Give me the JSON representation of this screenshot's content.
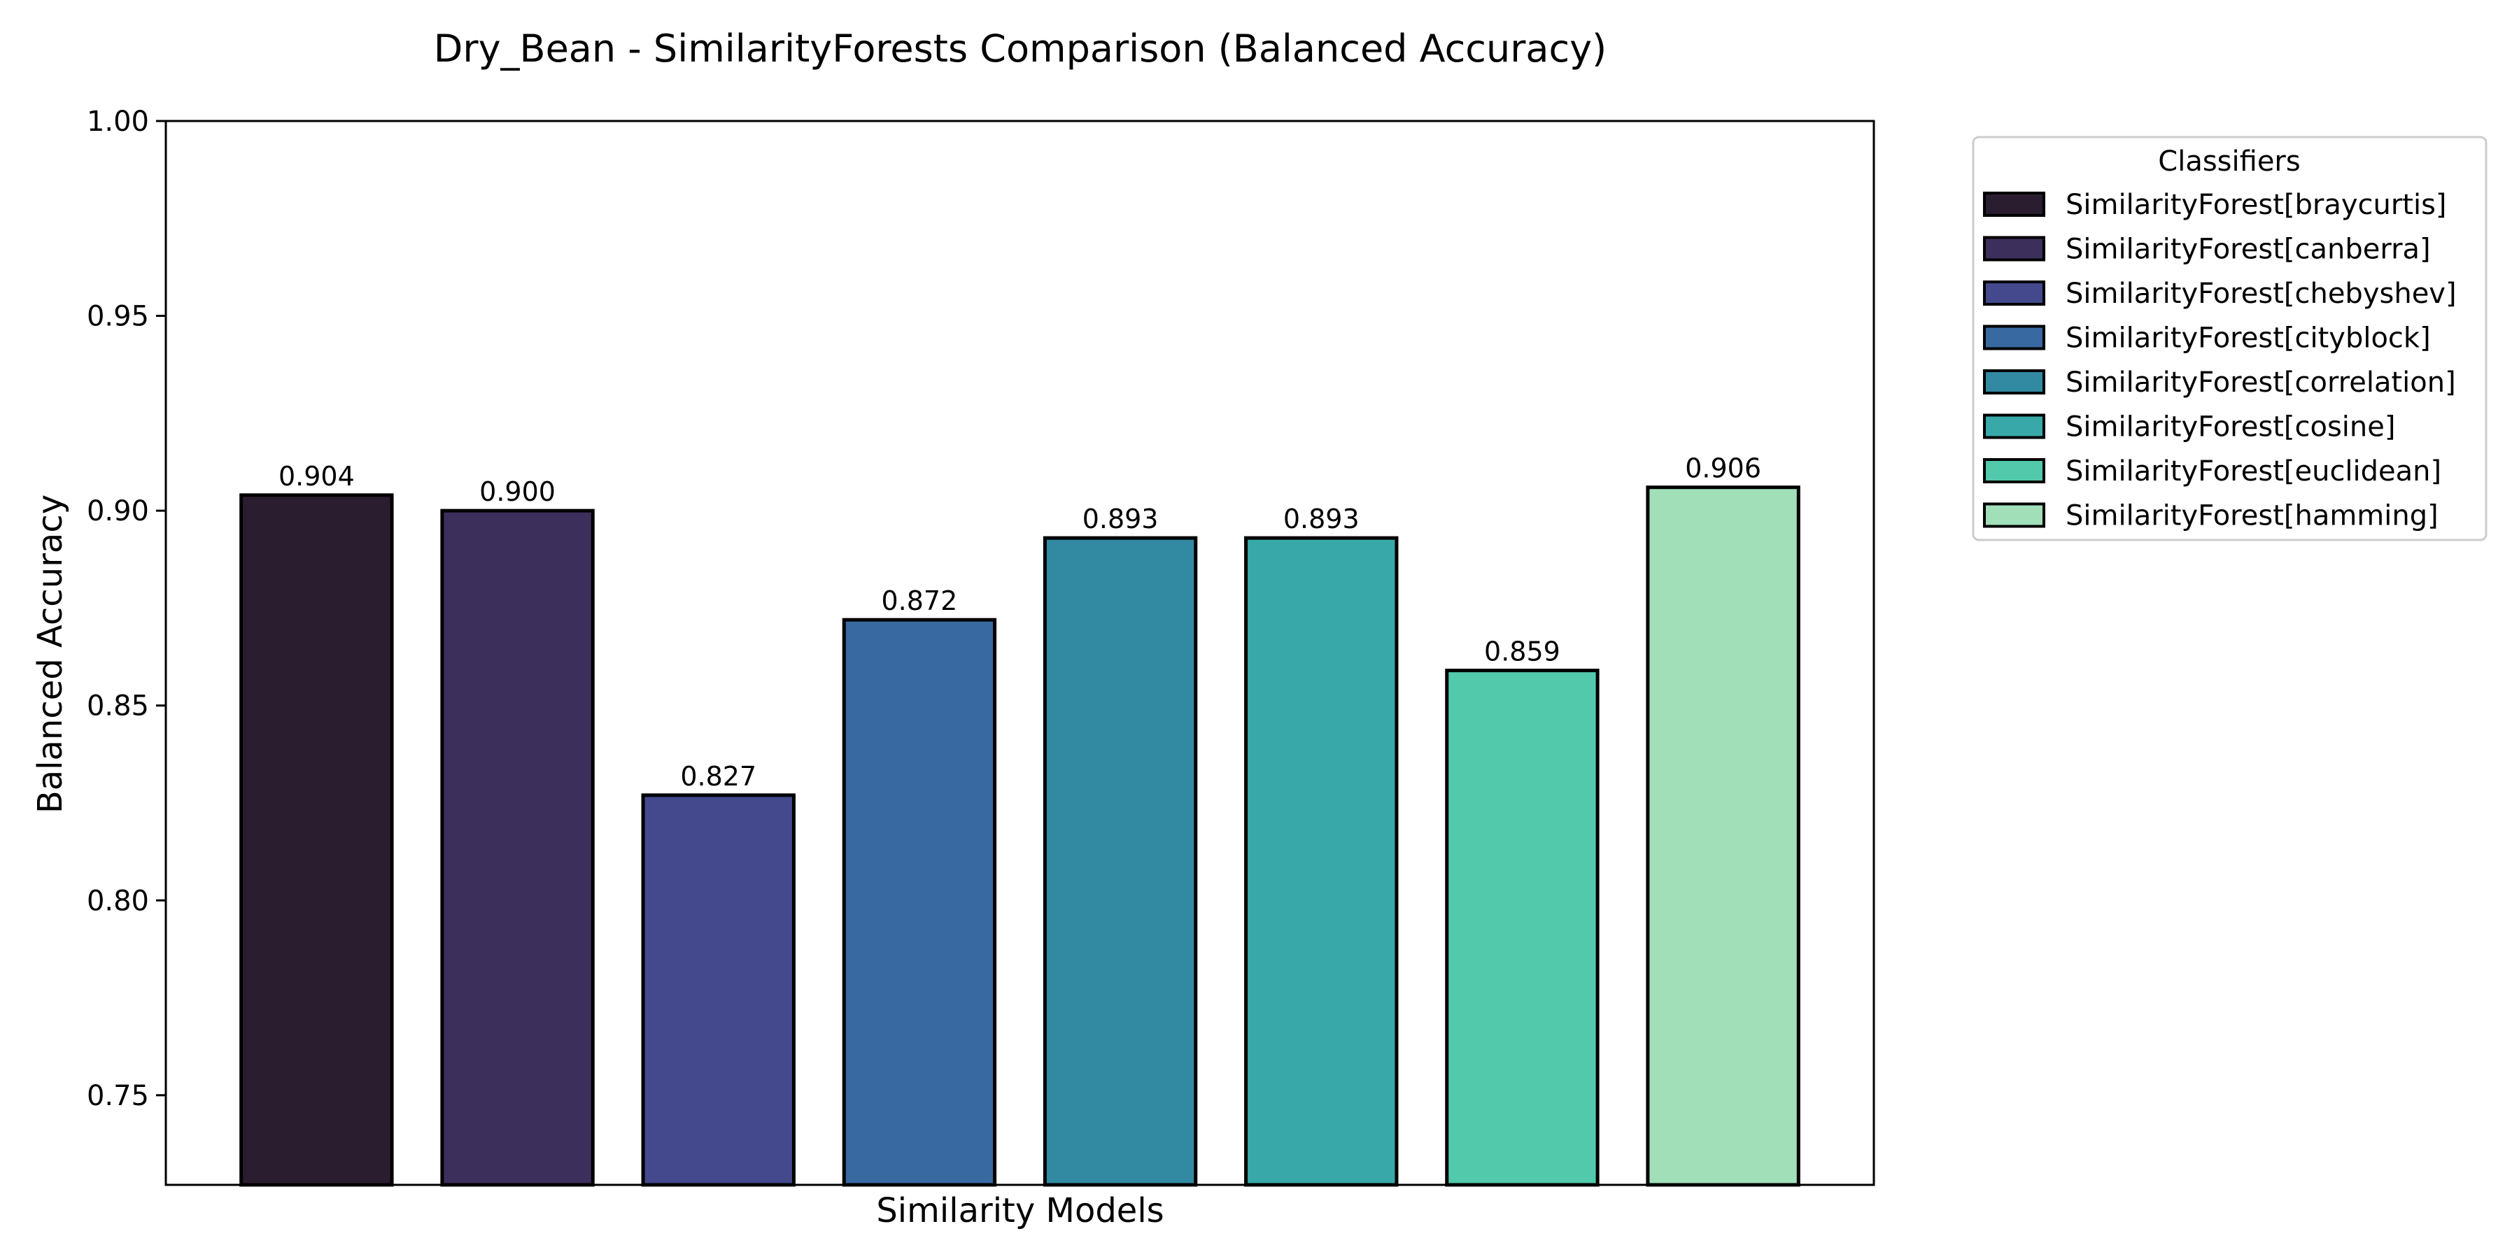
{
  "chart_data": {
    "type": "bar",
    "title": "Dry_Bean - SimilarityForests Comparison (Balanced Accuracy)",
    "xlabel": "Similarity Models",
    "ylabel": "Balanced Accuracy",
    "ylim": [
      0.727,
      1.0
    ],
    "yticks": [
      0.75,
      0.8,
      0.85,
      0.9,
      0.95,
      1.0
    ],
    "ytick_labels": [
      "0.75",
      "0.80",
      "0.85",
      "0.90",
      "0.95",
      "1.00"
    ],
    "grid": false,
    "categories": [
      "SimilarityForest[braycurtis]",
      "SimilarityForest[canberra]",
      "SimilarityForest[chebyshev]",
      "SimilarityForest[cityblock]",
      "SimilarityForest[correlation]",
      "SimilarityForest[cosine]",
      "SimilarityForest[euclidean]",
      "SimilarityForest[hamming]"
    ],
    "values": [
      0.904,
      0.9,
      0.827,
      0.872,
      0.893,
      0.893,
      0.859,
      0.906
    ],
    "value_labels": [
      "0.904",
      "0.900",
      "0.827",
      "0.872",
      "0.893",
      "0.893",
      "0.859",
      "0.906"
    ],
    "colors": [
      "#2a1d30",
      "#3c2f5c",
      "#43498c",
      "#3869a0",
      "#3289a2",
      "#38a9a8",
      "#53c9ac",
      "#a1dfb8"
    ],
    "edge_color": "#000000",
    "legend": {
      "title": "Classifiers",
      "placement": "outside-top-right"
    }
  }
}
